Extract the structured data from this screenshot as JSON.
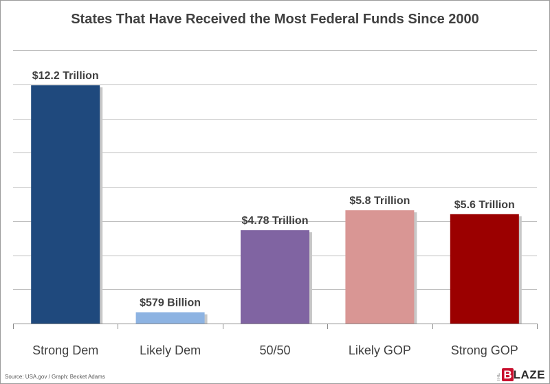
{
  "chart_data": {
    "type": "bar",
    "title": "States That Have Received the Most Federal Funds Since 2000",
    "categories": [
      "Strong Dem",
      "Likely Dem",
      "50/50",
      "Likely GOP",
      "Strong GOP"
    ],
    "values": [
      12.2,
      0.579,
      4.78,
      5.8,
      5.6
    ],
    "value_unit": "trillion USD",
    "data_labels": [
      "$12.2 Trillion",
      "$579 Billion",
      "$4.78 Trillion",
      "$5.8 Trillion",
      "$5.6 Trillion"
    ],
    "colors": [
      "#1f497d",
      "#8db3e2",
      "#8064a2",
      "#d99694",
      "#9b0000"
    ],
    "xlabel": "",
    "ylabel": "",
    "ylim": [
      0,
      14
    ],
    "y_gridline_step": 1.75,
    "grid": true,
    "legend": "none",
    "source": "Source: USA.gov / Graph: Becket Adams"
  },
  "branding": {
    "logo_prefix": "THE",
    "logo_initial": "B",
    "logo_rest": "LAZE"
  }
}
